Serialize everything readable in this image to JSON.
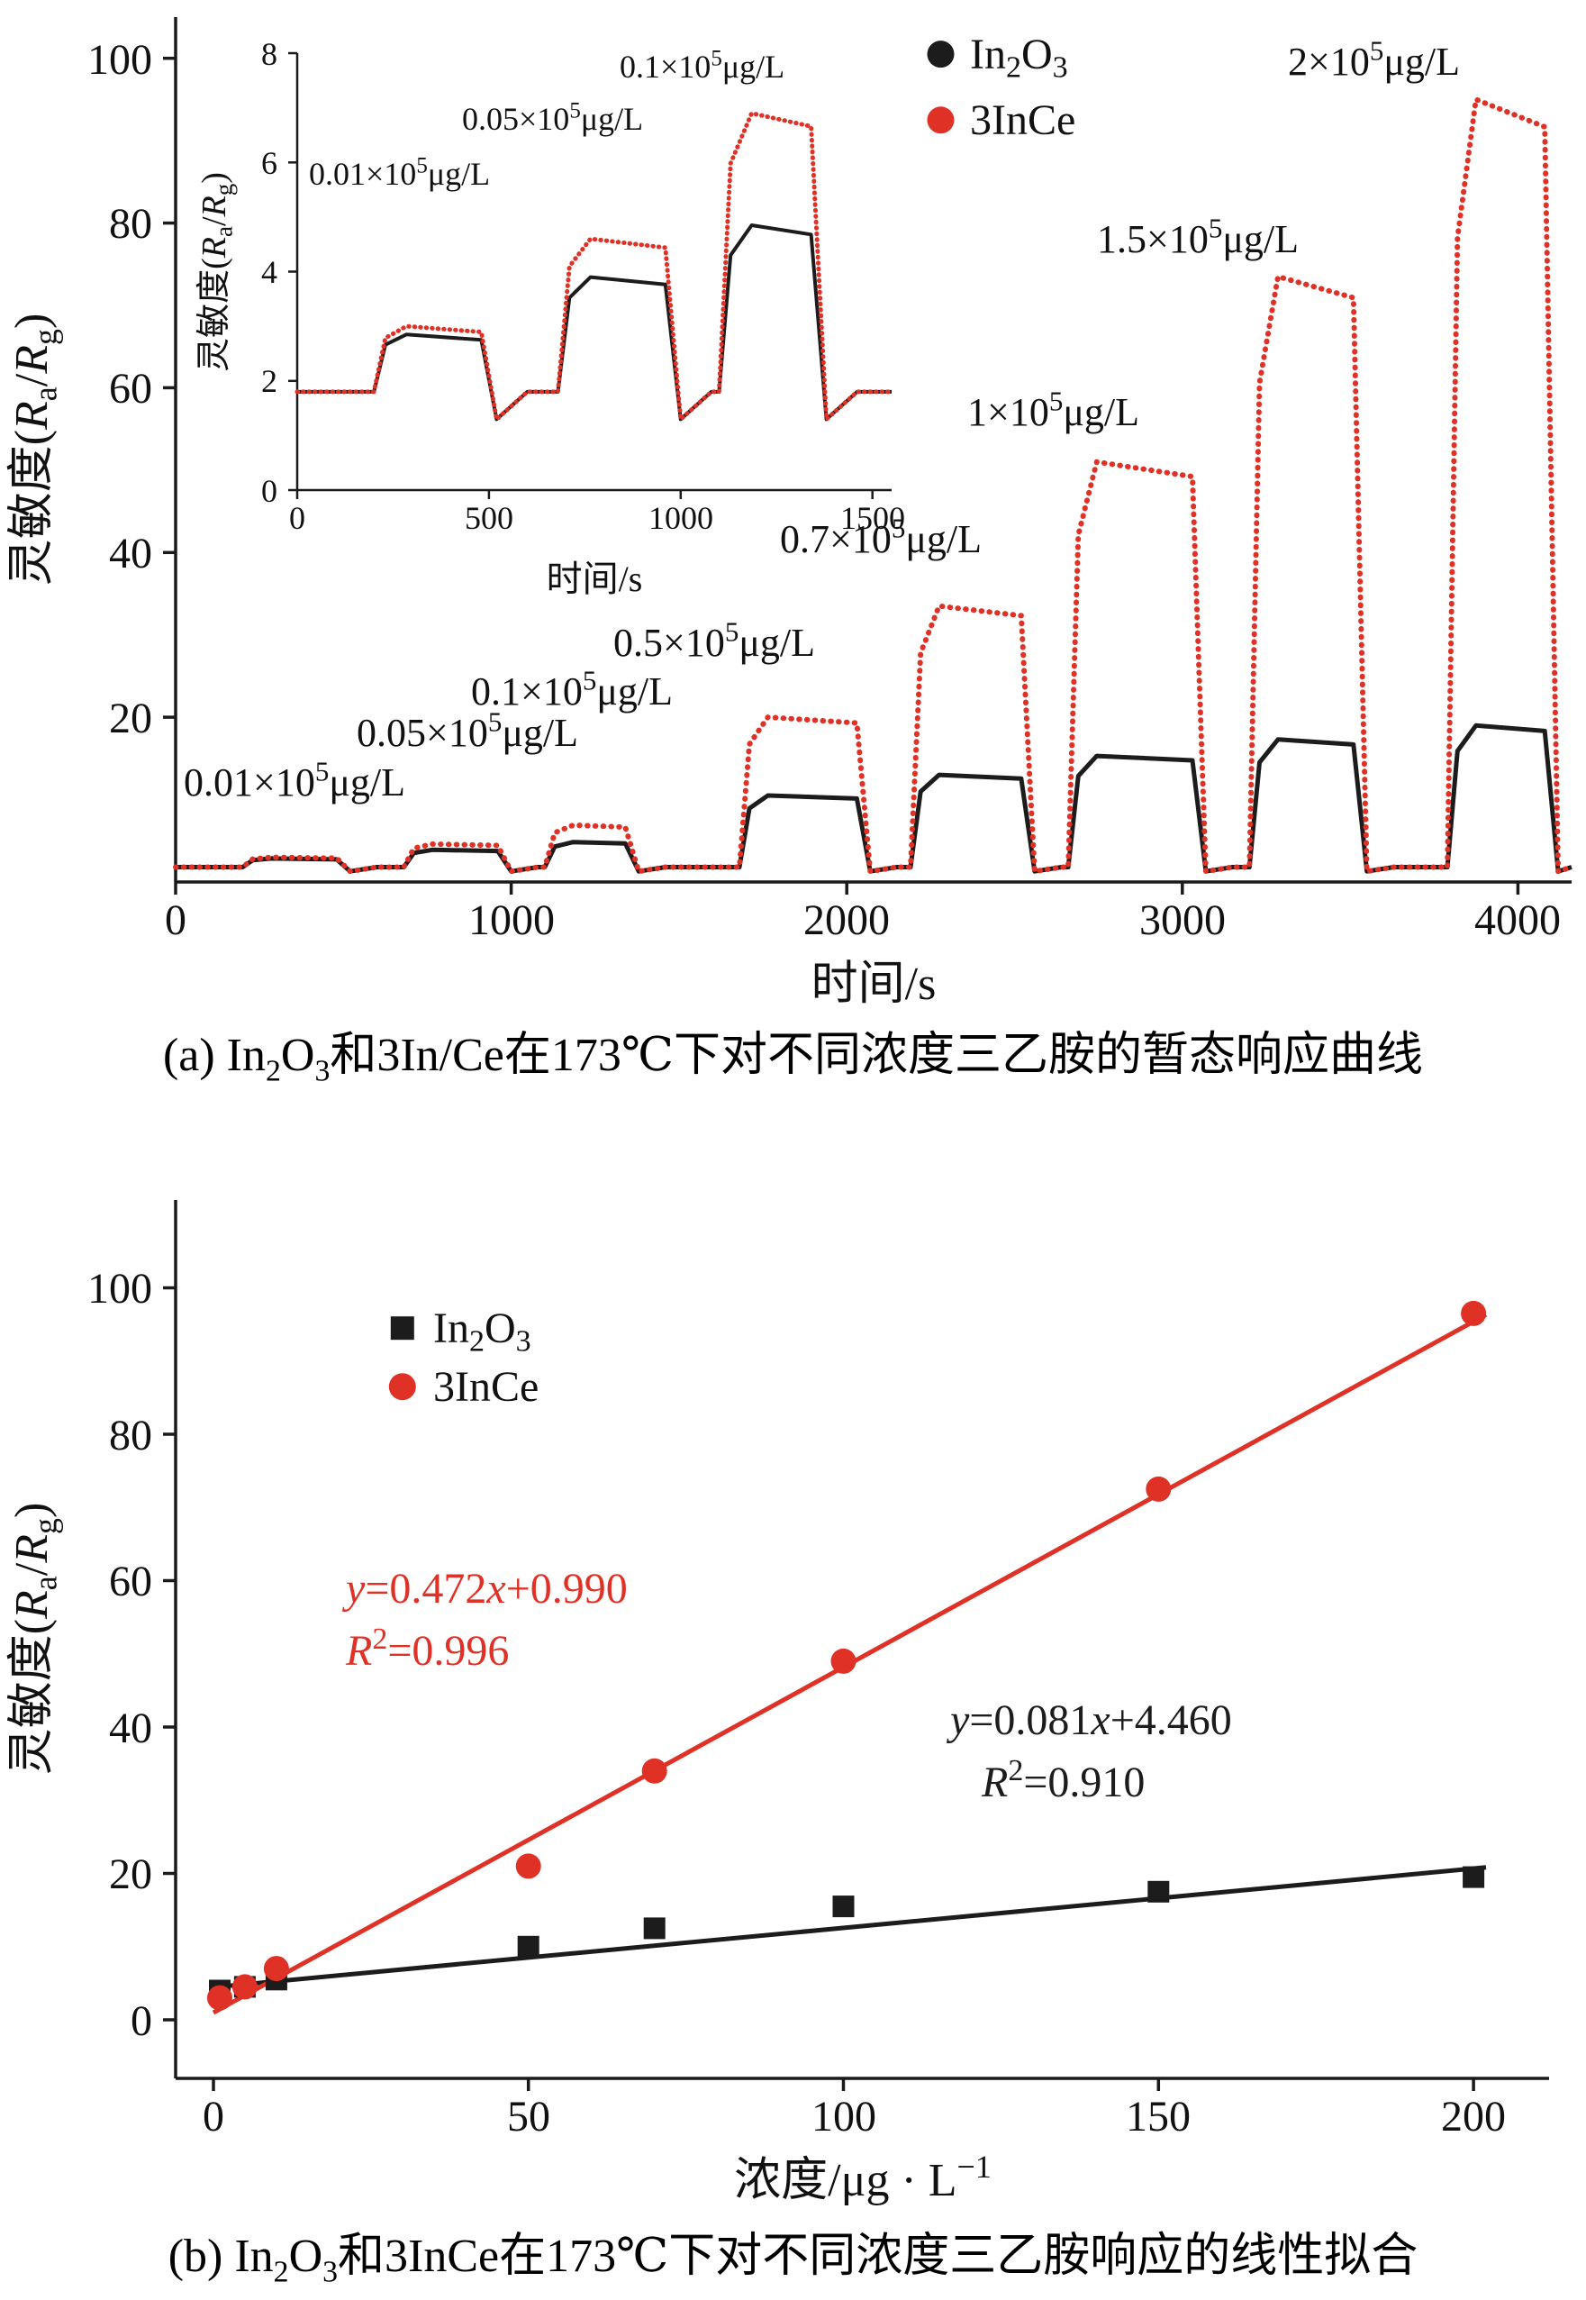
{
  "colors": {
    "red": "#e03127",
    "black": "#1c1c1c"
  },
  "chart_data": [
    {
      "id": "panel-a",
      "type": "line",
      "caption_rich": [
        "(a) In",
        {
          "sub": "2"
        },
        "O",
        {
          "sub": "3"
        },
        "和3In/Ce在173℃下对不同浓度三乙胺的暂态响应曲线"
      ],
      "xlabel": "时间/s",
      "ylabel_rich": [
        "灵敏度(",
        {
          "i": "R"
        },
        {
          "sub": "a"
        },
        "/",
        {
          "i": "R"
        },
        {
          "sub": "g"
        },
        ")"
      ],
      "xlim": [
        0,
        4160
      ],
      "ylim": [
        0,
        105
      ],
      "x_ticks": [
        0,
        1000,
        2000,
        3000,
        4000
      ],
      "y_ticks": [
        20,
        40,
        60,
        80,
        100
      ],
      "baseline": 1.8,
      "series_names_rich": [
        [
          "In",
          {
            "sub": "2"
          },
          "O",
          {
            "sub": "3"
          }
        ],
        [
          "3InCe"
        ]
      ],
      "legend": {
        "x": 2280,
        "y": [
          100.5,
          92.5
        ],
        "colors": [
          "black",
          "red"
        ]
      },
      "pulses": [
        {
          "on": 200,
          "off": 480,
          "In2O3": 2.85,
          "3InCe": 3.0,
          "label_rich": [
            "0.01×10",
            {
              "sup": "5"
            },
            "μg/L"
          ],
          "label_x": 25,
          "label_y": 10.5
        },
        {
          "on": 680,
          "off": 960,
          "In2O3": 3.9,
          "3InCe": 4.6,
          "label_rich": [
            "0.05×10",
            {
              "sup": "5"
            },
            "μg/L"
          ],
          "label_x": 540,
          "label_y": 16.5
        },
        {
          "on": 1100,
          "off": 1340,
          "In2O3": 4.85,
          "3InCe": 6.9,
          "label_rich": [
            "0.1×10",
            {
              "sup": "5"
            },
            "μg/L"
          ],
          "label_x": 880,
          "label_y": 21.5
        },
        {
          "on": 1680,
          "off": 2030,
          "In2O3": 10.5,
          "3InCe": 20.0,
          "label_rich": [
            "0.5×10",
            {
              "sup": "5"
            },
            "μg/L"
          ],
          "label_x": 1305,
          "label_y": 27.5
        },
        {
          "on": 2190,
          "off": 2520,
          "In2O3": 13.0,
          "3InCe": 33.5,
          "label_rich": [
            "0.7×10",
            {
              "sup": "5"
            },
            "μg/L"
          ],
          "label_x": 1800,
          "label_y": 40
        },
        {
          "on": 2660,
          "off": 3030,
          "In2O3": 15.3,
          "3InCe": 51.0,
          "label_rich": [
            "1×10",
            {
              "sup": "5"
            },
            "μg/L"
          ],
          "label_x": 2360,
          "label_y": 55.5
        },
        {
          "on": 3200,
          "off": 3510,
          "In2O3": 17.3,
          "3InCe": 73.5,
          "label_rich": [
            "1.5×10",
            {
              "sup": "5"
            },
            "μg/L"
          ],
          "label_x": 2745,
          "label_y": 76.5
        },
        {
          "on": 3790,
          "off": 4080,
          "In2O3": 19.0,
          "3InCe": 95.0,
          "label_rich": [
            "2×10",
            {
              "sup": "5"
            },
            "μg/L"
          ],
          "label_x": 3315,
          "label_y": 98
        }
      ]
    },
    {
      "id": "panel-a-inset",
      "type": "line",
      "xlabel": "时间/s",
      "ylabel_rich": [
        "灵敏度(",
        {
          "i": "R"
        },
        {
          "sub": "a"
        },
        "/",
        {
          "i": "R"
        },
        {
          "sub": "g"
        },
        ")"
      ],
      "xlim": [
        0,
        1550
      ],
      "ylim": [
        0,
        8
      ],
      "x_ticks": [
        0,
        500,
        1000,
        1500
      ],
      "y_ticks": [
        0,
        2,
        4,
        6,
        8
      ],
      "pulse_count": 3,
      "annotations": [
        {
          "rich": [
            "0.01×10",
            {
              "sup": "5"
            },
            "μg/L"
          ],
          "x": 30,
          "y": 5.6
        },
        {
          "rich": [
            "0.05×10",
            {
              "sup": "5"
            },
            "μg/L"
          ],
          "x": 430,
          "y": 6.6
        },
        {
          "rich": [
            "0.1×10",
            {
              "sup": "5"
            },
            "μg/L"
          ],
          "x": 840,
          "y": 7.55
        }
      ]
    },
    {
      "id": "panel-b",
      "type": "scatter",
      "caption_rich": [
        "(b) In",
        {
          "sub": "2"
        },
        "O",
        {
          "sub": "3"
        },
        "和3InCe在173℃下对不同浓度三乙胺响应的线性拟合"
      ],
      "xlabel_rich": [
        "浓度/μg · L",
        {
          "sup": "−1"
        }
      ],
      "ylabel_rich": [
        "灵敏度(",
        {
          "i": "R"
        },
        {
          "sub": "a"
        },
        "/",
        {
          "i": "R"
        },
        {
          "sub": "g"
        },
        ")"
      ],
      "xlim": [
        -6,
        212
      ],
      "ylim": [
        -8,
        112
      ],
      "x_ticks": [
        0,
        50,
        100,
        150,
        200
      ],
      "y_ticks": [
        0,
        20,
        40,
        60,
        80,
        100
      ],
      "series": [
        {
          "name_rich": [
            "In",
            {
              "sub": "2"
            },
            "O",
            {
              "sub": "3"
            }
          ],
          "marker": "square",
          "color": "black",
          "x": [
            1,
            5,
            10,
            50,
            70,
            100,
            150,
            200
          ],
          "y": [
            4,
            4.5,
            5.5,
            10,
            12.5,
            15.5,
            17.5,
            19.5
          ],
          "fit": {
            "slope": 0.081,
            "intercept": 4.46,
            "x_range": [
              0,
              202
            ]
          }
        },
        {
          "name_rich": [
            "3InCe"
          ],
          "marker": "circle",
          "color": "red",
          "x": [
            1,
            5,
            10,
            50,
            70,
            100,
            150,
            200
          ],
          "y": [
            3,
            4.5,
            7,
            21,
            34,
            49,
            72.5,
            96.5
          ],
          "fit": {
            "slope": 0.472,
            "intercept": 0.99,
            "x_range": [
              0,
              202
            ]
          }
        }
      ],
      "legend": {
        "x": 30,
        "y": [
          94.5,
          86.5
        ]
      },
      "annotations": [
        {
          "rich": [
            {
              "i": "y"
            },
            "=0.472",
            {
              "i": "x"
            },
            "+0.990"
          ],
          "x": 21,
          "y": 57,
          "color": "red"
        },
        {
          "rich": [
            {
              "i": "R"
            },
            {
              "sup": "2"
            },
            "=0.996"
          ],
          "x": 21,
          "y": 48.5,
          "color": "red"
        },
        {
          "rich": [
            {
              "i": "y"
            },
            "=0.081",
            {
              "i": "x"
            },
            "+4.460"
          ],
          "x": 117,
          "y": 39,
          "color": "black"
        },
        {
          "rich": [
            {
              "i": "R"
            },
            {
              "sup": "2"
            },
            "=0.910"
          ],
          "x": 122,
          "y": 30.5,
          "color": "black"
        }
      ]
    }
  ]
}
